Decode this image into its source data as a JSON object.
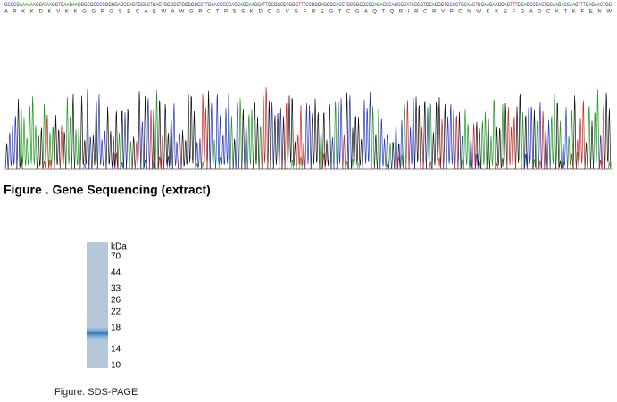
{
  "sequencing": {
    "dna": "GCCCGAAAAAAGGATAAGGTGAAGAAGGGCGGCCCGGGGAGCGAGTGCGCTGAGTGGGCCTGGGGGCCTTGCACCCCCAGCAGCAAGGATTGCGGCGTGGGTTTCCGGGAGGGCACCTGCGGGGCCCAGACCCAGCGCATCCGGTGCAGGGTGCCCTGCAACTGGAAGAAGGAGTTTGGAGCCGACTGCAAGACCAAGTTTGAGAACTGG",
    "protein": "A R K K D K V K K G G P G S E C A E W A W G P C T P S S K D C G V G F R E G T C G A Q T Q R I R C R V P C N W K K E F G A D C K T K F E N W",
    "caption": "Figure . Gene Sequencing (extract)"
  },
  "sds_page": {
    "unit": "kDa",
    "markers": [
      "70",
      "44",
      "33",
      "26",
      "22",
      "18",
      "14",
      "10"
    ],
    "caption": "Figure. SDS-PAGE"
  }
}
